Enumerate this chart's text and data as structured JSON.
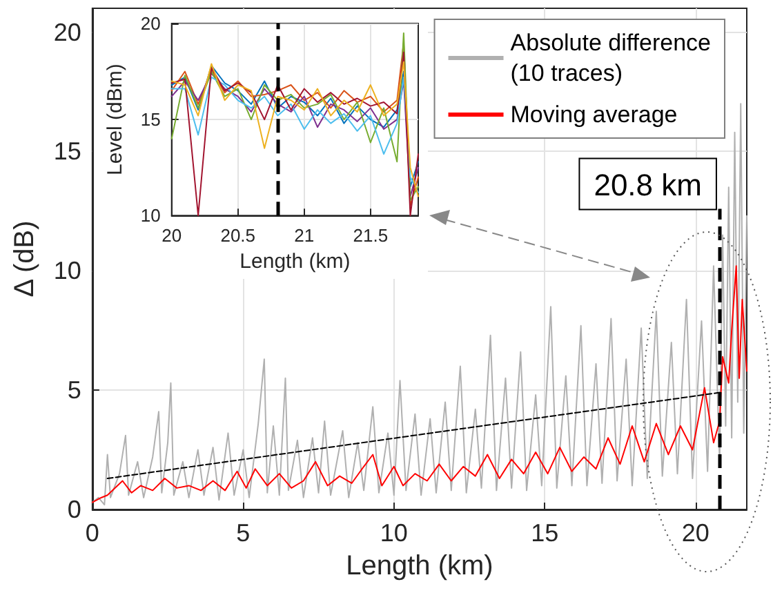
{
  "chart_data": [
    {
      "type": "line",
      "xlabel": "Length (km)",
      "ylabel": "Δ (dB)",
      "xlim": [
        0,
        21.7
      ],
      "xticks": [
        0,
        5,
        10,
        15,
        20
      ],
      "ylim": [
        0,
        21
      ],
      "yticks": [
        0,
        5,
        10,
        15,
        20
      ],
      "grid": true,
      "legend": "top right",
      "marker": "none",
      "ref_lines": [
        {
          "axis": "x",
          "value": 20.8,
          "label": "20.8 km",
          "color": "#000000",
          "line_style": "dashed"
        }
      ],
      "series": [
        {
          "name": "Absolute difference\n(10 traces)",
          "color": "#b0b0b0",
          "x": [
            0.0,
            0.2,
            0.4,
            0.5,
            0.6,
            0.9,
            1.1,
            1.2,
            1.5,
            1.7,
            2.0,
            2.2,
            2.3,
            2.5,
            2.6,
            2.7,
            3.0,
            3.2,
            3.5,
            3.7,
            4.0,
            4.2,
            4.5,
            4.7,
            5.0,
            5.2,
            5.5,
            5.7,
            5.8,
            6.0,
            6.2,
            6.4,
            6.5,
            6.8,
            7.0,
            7.3,
            7.5,
            7.7,
            7.9,
            8.3,
            8.5,
            8.8,
            9.0,
            9.3,
            9.5,
            9.8,
            10.0,
            10.2,
            10.4,
            10.7,
            10.9,
            11.2,
            11.4,
            11.7,
            11.9,
            12.2,
            12.4,
            12.7,
            12.9,
            13.2,
            13.4,
            13.7,
            13.9,
            14.2,
            14.4,
            14.7,
            14.9,
            15.2,
            15.4,
            15.7,
            15.9,
            16.2,
            16.4,
            16.7,
            16.9,
            17.2,
            17.4,
            17.7,
            17.9,
            18.2,
            18.4,
            18.7,
            18.9,
            19.2,
            19.4,
            19.7,
            19.9,
            20.2,
            20.4,
            20.6,
            20.8,
            20.9,
            21.0,
            21.1,
            21.2,
            21.3,
            21.4,
            21.5,
            21.6,
            21.7
          ],
          "values": [
            0.3,
            0.5,
            0.2,
            2.3,
            0.5,
            1.5,
            3.1,
            0.6,
            2.0,
            0.5,
            2.2,
            4.1,
            0.7,
            2.8,
            5.3,
            0.6,
            2.0,
            0.5,
            2.5,
            0.6,
            2.6,
            0.4,
            3.2,
            0.6,
            2.5,
            0.5,
            3.6,
            6.3,
            0.7,
            3.5,
            0.6,
            5.5,
            0.8,
            2.9,
            0.5,
            3.0,
            0.7,
            3.7,
            0.6,
            3.3,
            0.5,
            2.8,
            0.8,
            4.3,
            0.7,
            3.2,
            0.6,
            5.4,
            0.8,
            4.0,
            0.6,
            3.8,
            0.7,
            4.5,
            0.8,
            6.0,
            0.7,
            4.2,
            0.9,
            7.3,
            0.8,
            5.5,
            0.9,
            6.6,
            0.8,
            4.8,
            1.0,
            8.5,
            0.9,
            5.6,
            1.0,
            7.7,
            1.0,
            6.1,
            1.1,
            8.0,
            1.2,
            6.3,
            1.0,
            7.6,
            1.3,
            8.3,
            1.4,
            7.0,
            1.5,
            8.8,
            1.3,
            7.9,
            1.6,
            10.2,
            2.0,
            11.5,
            3.5,
            13.5,
            3.0,
            15.8,
            4.5,
            17.0,
            3.2,
            12.3
          ]
        },
        {
          "name": "Moving average",
          "color": "#ff0000",
          "x": [
            0,
            0.3,
            0.5,
            1.0,
            1.3,
            1.6,
            2.0,
            2.4,
            2.8,
            3.2,
            3.6,
            4.0,
            4.4,
            4.8,
            5.1,
            5.4,
            5.8,
            6.2,
            6.6,
            7.0,
            7.4,
            7.8,
            8.2,
            8.6,
            9.0,
            9.3,
            9.6,
            10.0,
            10.3,
            10.7,
            11.1,
            11.5,
            11.9,
            12.3,
            12.7,
            13.1,
            13.5,
            13.9,
            14.3,
            14.7,
            15.1,
            15.5,
            15.9,
            16.3,
            16.7,
            17.1,
            17.5,
            17.9,
            18.3,
            18.7,
            19.1,
            19.5,
            19.9,
            20.3,
            20.6,
            20.8,
            20.9,
            21.1,
            21.2,
            21.35,
            21.45,
            21.55,
            21.7
          ],
          "values": [
            0.3,
            0.5,
            0.6,
            1.2,
            0.7,
            1.0,
            0.8,
            1.3,
            0.9,
            1.0,
            0.8,
            1.2,
            0.8,
            1.6,
            0.9,
            1.7,
            1.0,
            1.5,
            0.9,
            1.2,
            2.0,
            1.0,
            1.4,
            1.1,
            1.8,
            2.3,
            1.0,
            1.8,
            1.0,
            1.5,
            1.2,
            1.9,
            1.2,
            1.8,
            1.4,
            2.3,
            1.3,
            2.1,
            1.5,
            2.4,
            1.5,
            2.6,
            1.6,
            2.2,
            1.7,
            3.0,
            1.9,
            3.5,
            2.0,
            3.6,
            2.3,
            3.5,
            2.5,
            5.1,
            2.8,
            3.7,
            6.4,
            5.3,
            7.5,
            10.2,
            5.5,
            8.8,
            5.8
          ]
        },
        {
          "color": "#000000",
          "line_style": "dashed",
          "x": [
            0.5,
            20.8
          ],
          "values": [
            1.3,
            4.9
          ]
        }
      ]
    },
    {
      "type": "line",
      "xlabel": "Length (km)",
      "ylabel": "Level (dBm)",
      "xlim": [
        20,
        21.86
      ],
      "xticks": [
        20,
        20.5,
        21,
        21.5
      ],
      "ylim": [
        10,
        20
      ],
      "yticks": [
        10,
        15,
        20
      ],
      "grid": true,
      "marker": "none",
      "ref_lines": [
        {
          "axis": "x",
          "value": 20.8,
          "color": "#000000",
          "line_style": "dashed"
        }
      ],
      "series": [
        {
          "color": "#0072bd",
          "x": [
            20.0,
            20.1,
            20.2,
            20.3,
            20.4,
            20.5,
            20.6,
            20.7,
            20.8,
            20.9,
            21.0,
            21.1,
            21.2,
            21.3,
            21.4,
            21.5,
            21.6,
            21.7,
            21.75,
            21.8,
            21.86
          ],
          "values": [
            16.8,
            17.2,
            15.5,
            17.8,
            16.9,
            16.5,
            15.8,
            17.0,
            15.6,
            16.2,
            15.9,
            15.2,
            16.1,
            14.8,
            15.7,
            15.0,
            14.6,
            15.5,
            17.5,
            11.5,
            12.8
          ]
        },
        {
          "color": "#d95319",
          "x": [
            20.0,
            20.1,
            20.2,
            20.3,
            20.4,
            20.5,
            20.6,
            20.7,
            20.8,
            20.9,
            21.0,
            21.1,
            21.2,
            21.3,
            21.4,
            21.5,
            21.6,
            21.7,
            21.75,
            21.8,
            21.86
          ],
          "values": [
            16.5,
            17.5,
            15.8,
            17.6,
            16.4,
            17.0,
            16.2,
            16.3,
            16.5,
            16.8,
            16.0,
            16.4,
            15.6,
            16.5,
            15.9,
            16.2,
            15.4,
            16.0,
            19.0,
            10.5,
            12.0
          ]
        },
        {
          "color": "#7e2f8e",
          "x": [
            20.0,
            20.1,
            20.2,
            20.3,
            20.4,
            20.5,
            20.6,
            20.7,
            20.8,
            20.9,
            21.0,
            21.1,
            21.2,
            21.3,
            21.4,
            21.5,
            21.6,
            21.7,
            21.75,
            21.8,
            21.86
          ],
          "values": [
            16.2,
            17.0,
            16.0,
            17.4,
            16.6,
            16.2,
            15.4,
            16.6,
            15.8,
            15.4,
            16.2,
            14.6,
            15.8,
            15.5,
            14.9,
            15.6,
            14.5,
            15.0,
            17.0,
            11.0,
            12.5
          ]
        },
        {
          "color": "#77ac30",
          "x": [
            20.0,
            20.1,
            20.2,
            20.3,
            20.4,
            20.5,
            20.6,
            20.7,
            20.8,
            20.9,
            21.0,
            21.1,
            21.2,
            21.3,
            21.4,
            21.5,
            21.6,
            21.7,
            21.75,
            21.8,
            21.86
          ],
          "values": [
            14.0,
            17.3,
            15.6,
            17.5,
            16.2,
            16.6,
            15.0,
            16.8,
            16.0,
            16.3,
            15.6,
            15.8,
            16.3,
            15.0,
            15.9,
            13.8,
            15.6,
            12.8,
            19.5,
            10.8,
            11.5
          ]
        },
        {
          "color": "#4dbeee",
          "x": [
            20.0,
            20.1,
            20.2,
            20.3,
            20.4,
            20.5,
            20.6,
            20.7,
            20.8,
            20.9,
            21.0,
            21.1,
            21.2,
            21.3,
            21.4,
            21.5,
            21.6,
            21.7,
            21.75,
            21.8,
            21.86
          ],
          "values": [
            16.6,
            16.6,
            14.2,
            17.2,
            16.8,
            16.0,
            15.6,
            16.2,
            15.2,
            15.8,
            14.5,
            15.5,
            14.8,
            15.3,
            14.4,
            15.2,
            13.2,
            14.8,
            17.2,
            12.0,
            11.2
          ]
        },
        {
          "color": "#a2142f",
          "x": [
            20.0,
            20.1,
            20.2,
            20.3,
            20.4,
            20.5,
            20.6,
            20.7,
            20.8,
            20.9,
            21.0,
            21.1,
            21.2,
            21.3,
            21.4,
            21.5,
            21.6,
            21.7,
            21.75,
            21.8,
            21.86
          ],
          "values": [
            16.9,
            17.1,
            10.0,
            17.7,
            16.5,
            16.9,
            16.4,
            15.0,
            16.8,
            15.5,
            16.6,
            15.9,
            16.4,
            15.8,
            16.1,
            15.7,
            15.9,
            15.3,
            18.5,
            10.0,
            13.2
          ]
        },
        {
          "color": "#edb120",
          "x": [
            20.0,
            20.1,
            20.2,
            20.3,
            20.4,
            20.5,
            20.6,
            20.7,
            20.8,
            20.9,
            21.0,
            21.1,
            21.2,
            21.3,
            21.4,
            21.5,
            21.6,
            21.7,
            21.75,
            21.8,
            21.86
          ],
          "values": [
            17.0,
            16.8,
            15.2,
            17.9,
            16.0,
            16.8,
            16.5,
            13.5,
            16.2,
            16.0,
            15.5,
            16.6,
            15.2,
            16.0,
            15.4,
            16.8,
            15.2,
            15.8,
            18.0,
            12.5,
            11.0
          ]
        }
      ]
    }
  ]
}
